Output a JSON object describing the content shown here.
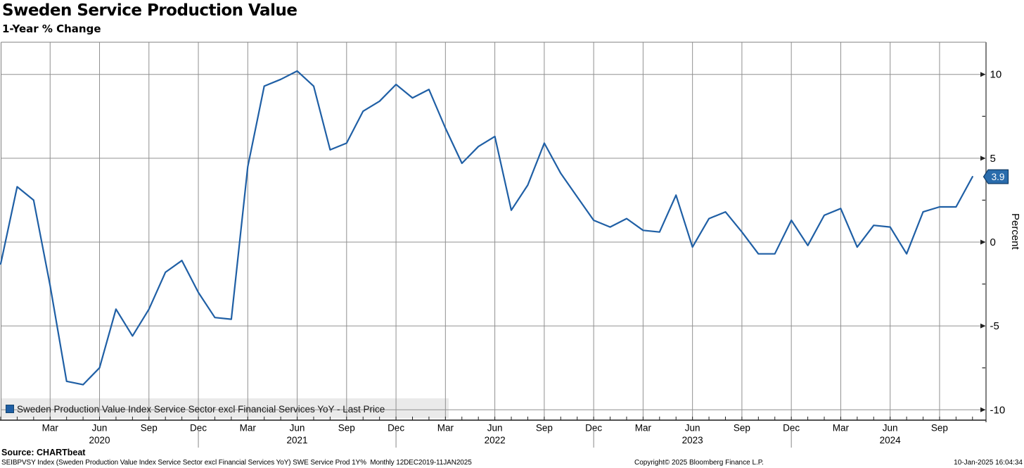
{
  "title": "Sweden Service Production Value",
  "subtitle": "1-Year % Change",
  "legend": {
    "marker_color": "#1f5fa5",
    "label": "Sweden Production Value Index Service Sector excl Financial Services YoY - Last Price"
  },
  "y_axis": {
    "title": "Percent",
    "major_ticks": [
      10,
      5,
      0,
      -5,
      -10
    ],
    "minor_ticks": [
      7.5,
      2.5,
      -2.5,
      -7.5
    ],
    "last_price": "3.9"
  },
  "x_axis": {
    "month_labels": {
      "03": "Mar",
      "06": "Jun",
      "09": "Sep",
      "12": "Dec"
    },
    "year_labels": [
      "2020",
      "2021",
      "2022",
      "2023",
      "2024"
    ]
  },
  "footer": {
    "source": "Source: CHARTbeat",
    "ticker_line": "SEIBPVSY Index (Sweden Production Value Index Service Sector excl Financial Services YoY) SWE Service Prod 1Y%  Monthly 12DEC2019-11JAN2025",
    "copyright": "Copyright© 2025 Bloomberg Finance L.P.",
    "timestamp": "10-Jan-2025 16:04:34"
  },
  "colors": {
    "line": "#1f5fa5",
    "grid": "#909090",
    "axis_border": "#808080",
    "bottom_axis": "#1a1a1a",
    "tick": "#222222",
    "legend_bg": "#eaeaea",
    "badge_bg": "#2a6cac",
    "badge_border": "#0d3a66",
    "badge_text": "#ffffff"
  },
  "chart_data": {
    "type": "line",
    "series_name": "Sweden Production Value Index Service Sector excl Financial Services YoY",
    "unit": "Percent",
    "x": [
      "2019-12",
      "2020-01",
      "2020-02",
      "2020-03",
      "2020-04",
      "2020-05",
      "2020-06",
      "2020-07",
      "2020-08",
      "2020-09",
      "2020-10",
      "2020-11",
      "2020-12",
      "2021-01",
      "2021-02",
      "2021-03",
      "2021-04",
      "2021-05",
      "2021-06",
      "2021-07",
      "2021-08",
      "2021-09",
      "2021-10",
      "2021-11",
      "2021-12",
      "2022-01",
      "2022-02",
      "2022-03",
      "2022-04",
      "2022-05",
      "2022-06",
      "2022-07",
      "2022-08",
      "2022-09",
      "2022-10",
      "2022-11",
      "2022-12",
      "2023-01",
      "2023-02",
      "2023-03",
      "2023-04",
      "2023-05",
      "2023-06",
      "2023-07",
      "2023-08",
      "2023-09",
      "2023-10",
      "2023-11",
      "2023-12",
      "2024-01",
      "2024-02",
      "2024-03",
      "2024-04",
      "2024-05",
      "2024-06",
      "2024-07",
      "2024-08",
      "2024-09",
      "2024-10",
      "2024-11"
    ],
    "values": [
      -1.3,
      3.3,
      2.5,
      -2.6,
      -8.3,
      -8.5,
      -7.5,
      -4.0,
      -5.6,
      -4.0,
      -1.8,
      -1.1,
      -3.0,
      -4.5,
      -4.6,
      4.5,
      9.3,
      9.7,
      10.2,
      9.3,
      5.5,
      5.9,
      7.8,
      8.4,
      9.4,
      8.6,
      9.1,
      6.8,
      4.7,
      5.7,
      6.3,
      1.9,
      3.4,
      5.9,
      4.1,
      2.7,
      1.3,
      0.9,
      1.4,
      0.7,
      0.6,
      2.8,
      -0.3,
      1.4,
      1.8,
      0.6,
      -0.7,
      -0.7,
      1.3,
      -0.2,
      1.6,
      2.0,
      -0.3,
      1.0,
      0.9,
      -0.7,
      1.8,
      2.1,
      2.1,
      3.9
    ],
    "last_value": 3.9,
    "ylim": [
      -10.6,
      11.9
    ],
    "grid": true,
    "legend_position": "bottom-left"
  }
}
